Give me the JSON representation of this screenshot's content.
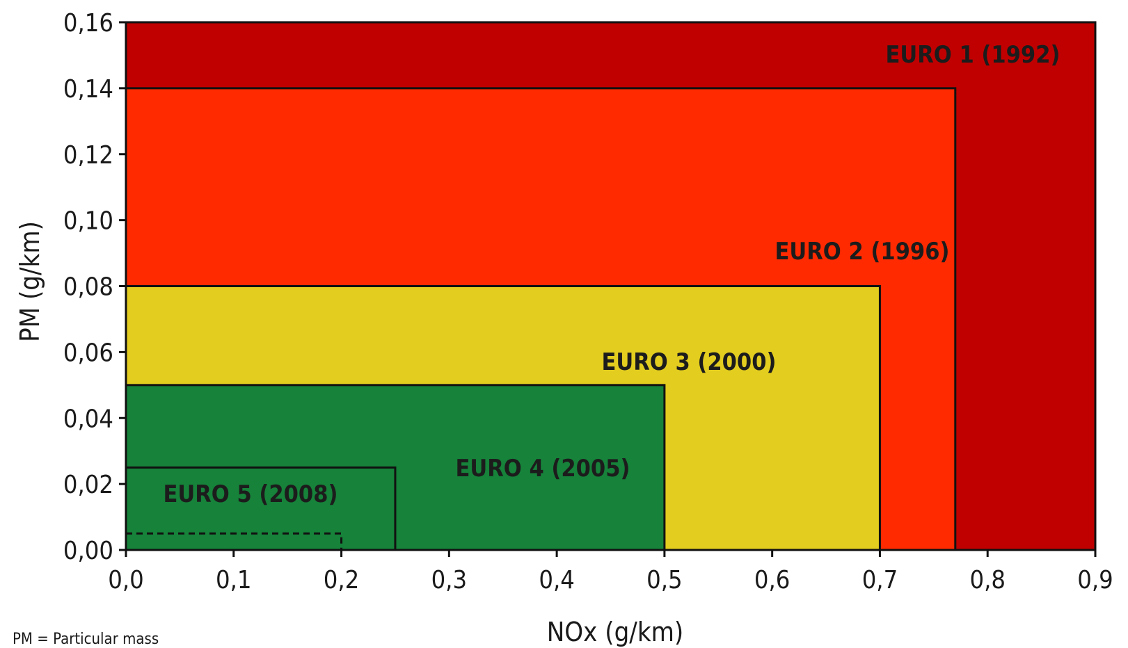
{
  "chart_data": {
    "type": "area",
    "title": "",
    "xlabel": "NOx (g/km)",
    "ylabel": "PM (g/km)",
    "xlim": [
      0.0,
      0.9
    ],
    "ylim": [
      0.0,
      0.16
    ],
    "x_ticks": [
      0.0,
      0.1,
      0.2,
      0.3,
      0.4,
      0.5,
      0.6,
      0.7,
      0.8,
      0.9
    ],
    "x_tick_labels": [
      "0,0",
      "0,1",
      "0,2",
      "0,3",
      "0,4",
      "0,5",
      "0,6",
      "0,7",
      "0,8",
      "0,9"
    ],
    "y_ticks": [
      0.0,
      0.02,
      0.04,
      0.06,
      0.08,
      0.1,
      0.12,
      0.14,
      0.16
    ],
    "y_tick_labels": [
      "0,00",
      "0,02",
      "0,04",
      "0,06",
      "0,08",
      "0,10",
      "0,12",
      "0,14",
      "0,16"
    ],
    "grid": false,
    "series": [
      {
        "name": "EURO 1 (1992)",
        "nox": 0.9,
        "pm": 0.16,
        "color": "#c00000"
      },
      {
        "name": "EURO 2 (1996)",
        "nox": 0.77,
        "pm": 0.14,
        "color": "#ff2a00"
      },
      {
        "name": "EURO 3 (2000)",
        "nox": 0.7,
        "pm": 0.08,
        "color": "#e3cd1f"
      },
      {
        "name": "EURO 4 (2005)",
        "nox": 0.5,
        "pm": 0.05,
        "color": "#16823a"
      },
      {
        "name": "EURO 5 (2008)",
        "nox": 0.25,
        "pm": 0.025,
        "color": "#16823a"
      }
    ],
    "dashed_limit": {
      "nox": 0.2,
      "pm": 0.005
    },
    "footnote": "PM = Particular mass"
  }
}
